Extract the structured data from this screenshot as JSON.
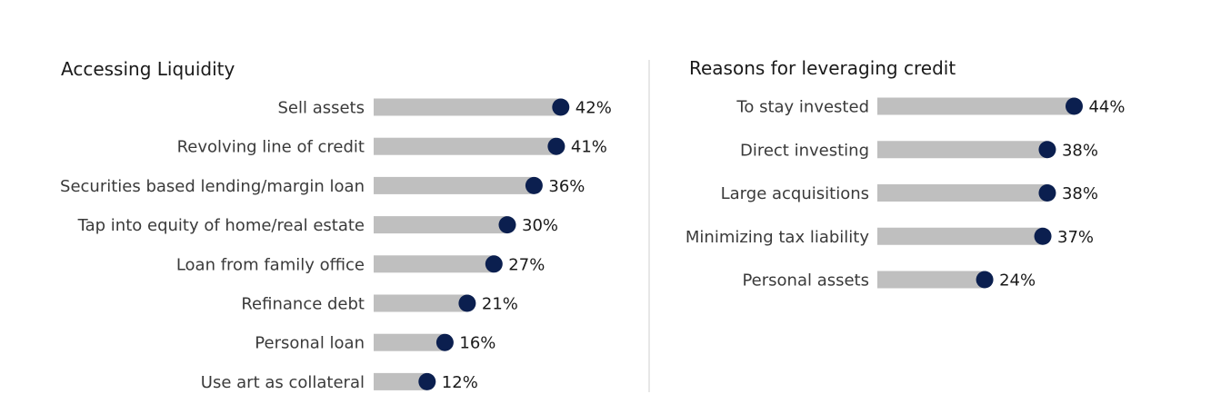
{
  "colors": {
    "bar": "#bfbfbf",
    "dot": "#0b1f4f",
    "divider": "#cfcfcf"
  },
  "chart_data": [
    {
      "type": "bar",
      "orientation": "horizontal",
      "title": "Accessing Liquidity",
      "categories": [
        "Sell assets",
        "Revolving line of credit",
        "Securities based lending/margin loan",
        "Tap into equity of home/real estate",
        "Loan from family office",
        "Refinance debt",
        "Personal loan",
        "Use art as collateral"
      ],
      "values": [
        42,
        41,
        36,
        30,
        27,
        21,
        16,
        12
      ],
      "value_labels": [
        "42%",
        "41%",
        "36%",
        "30%",
        "27%",
        "21%",
        "16%",
        "12%"
      ],
      "unit": "%",
      "xlim": [
        0,
        100
      ],
      "grid": false
    },
    {
      "type": "bar",
      "orientation": "horizontal",
      "title": "Reasons for leveraging credit",
      "categories": [
        "To stay invested",
        "Direct investing",
        "Large acquisitions",
        "Minimizing tax liability",
        "Personal assets"
      ],
      "values": [
        44,
        38,
        38,
        37,
        24
      ],
      "value_labels": [
        "44%",
        "38%",
        "38%",
        "37%",
        "24%"
      ],
      "unit": "%",
      "xlim": [
        0,
        100
      ],
      "grid": false
    }
  ]
}
